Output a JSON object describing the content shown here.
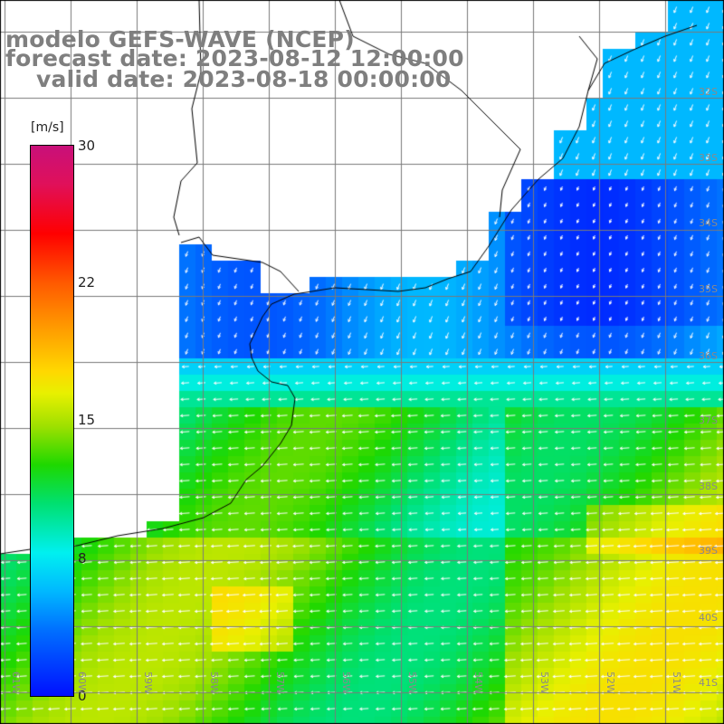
{
  "title": {
    "line1": "modelo GEFS-WAVE (NCEP)",
    "line2": "forecast date: 2023-08-12 12:00:00",
    "line3": "valid date: 2023-08-18 00:00:00"
  },
  "colorbar": {
    "unit": "[m/s]",
    "ticks": [
      "30",
      "22",
      "15",
      "8",
      "0"
    ],
    "range": [
      0,
      30
    ]
  },
  "lat_labels": [
    "32S",
    "33S",
    "34S",
    "35S",
    "36S",
    "37S",
    "38S",
    "39S",
    "40S",
    "41S"
  ],
  "lon_labels": [
    "61W",
    "60W",
    "59W",
    "58W",
    "57W",
    "56W",
    "55W",
    "54W",
    "53W",
    "52W",
    "51W"
  ],
  "colors": {
    "land": "#ffffff",
    "grid": "#7a7a7a",
    "coast": "#000000",
    "arrows": "#ffffff",
    "title": "#7f7f7f"
  }
}
